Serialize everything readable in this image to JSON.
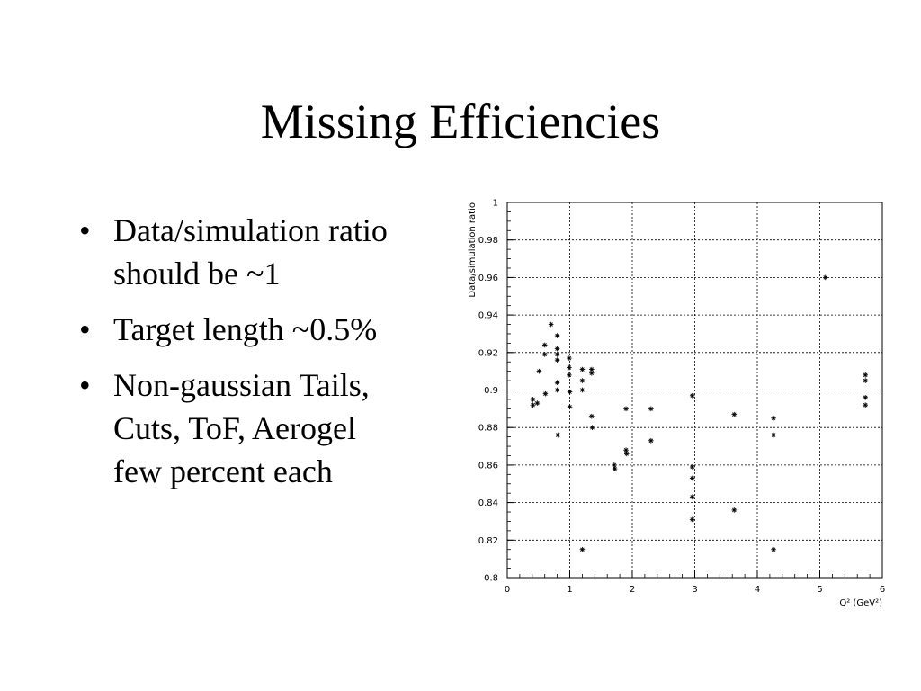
{
  "slide": {
    "title": "Missing Efficiencies",
    "bullets": [
      {
        "lines": [
          "Data/simulation ratio",
          "should be ~1"
        ]
      },
      {
        "lines": [
          "Target length ~0.5%"
        ]
      },
      {
        "lines": [
          "Non-gaussian Tails,",
          "Cuts, ToF, Aerogel",
          "few percent each"
        ]
      }
    ]
  },
  "chart_data": {
    "type": "scatter",
    "xlabel": "Q² (GeV²)",
    "ylabel": "Data/simulation ratio",
    "xlim": [
      0,
      6
    ],
    "ylim": [
      0.8,
      1.0
    ],
    "grid": true,
    "marker": "*",
    "xticks": [
      0,
      1,
      2,
      3,
      4,
      5,
      6
    ],
    "xtick_labels": [
      "0",
      "1",
      "2",
      "3",
      "4",
      "5",
      "6"
    ],
    "yticks": [
      0.8,
      0.82,
      0.84,
      0.86,
      0.88,
      0.9,
      0.92,
      0.94,
      0.96,
      0.98,
      1.0
    ],
    "ytick_labels": [
      "0.8",
      "0.82",
      "0.84",
      "0.86",
      "0.88",
      "0.9",
      "0.92",
      "0.94",
      "0.96",
      "0.98",
      "1"
    ],
    "points": [
      {
        "x": 0.41,
        "y": 0.892
      },
      {
        "x": 0.41,
        "y": 0.895
      },
      {
        "x": 0.48,
        "y": 0.893
      },
      {
        "x": 0.51,
        "y": 0.91
      },
      {
        "x": 0.6,
        "y": 0.924
      },
      {
        "x": 0.6,
        "y": 0.919
      },
      {
        "x": 0.61,
        "y": 0.898
      },
      {
        "x": 0.7,
        "y": 0.935
      },
      {
        "x": 0.8,
        "y": 0.929
      },
      {
        "x": 0.8,
        "y": 0.922
      },
      {
        "x": 0.8,
        "y": 0.919
      },
      {
        "x": 0.8,
        "y": 0.916
      },
      {
        "x": 0.8,
        "y": 0.904
      },
      {
        "x": 0.8,
        "y": 0.9
      },
      {
        "x": 0.81,
        "y": 0.876
      },
      {
        "x": 0.99,
        "y": 0.917
      },
      {
        "x": 0.99,
        "y": 0.912
      },
      {
        "x": 0.99,
        "y": 0.908
      },
      {
        "x": 1.0,
        "y": 0.899
      },
      {
        "x": 1.0,
        "y": 0.891
      },
      {
        "x": 1.2,
        "y": 0.911
      },
      {
        "x": 1.2,
        "y": 0.905
      },
      {
        "x": 1.2,
        "y": 0.9
      },
      {
        "x": 1.2,
        "y": 0.815
      },
      {
        "x": 1.35,
        "y": 0.911
      },
      {
        "x": 1.35,
        "y": 0.909
      },
      {
        "x": 1.35,
        "y": 0.886
      },
      {
        "x": 1.36,
        "y": 0.88
      },
      {
        "x": 1.71,
        "y": 0.86
      },
      {
        "x": 1.72,
        "y": 0.858
      },
      {
        "x": 1.9,
        "y": 0.89
      },
      {
        "x": 1.9,
        "y": 0.868
      },
      {
        "x": 1.91,
        "y": 0.866
      },
      {
        "x": 2.3,
        "y": 0.89
      },
      {
        "x": 2.3,
        "y": 0.873
      },
      {
        "x": 2.96,
        "y": 0.897
      },
      {
        "x": 2.96,
        "y": 0.859
      },
      {
        "x": 2.96,
        "y": 0.853
      },
      {
        "x": 2.96,
        "y": 0.843
      },
      {
        "x": 2.96,
        "y": 0.831
      },
      {
        "x": 3.63,
        "y": 0.887
      },
      {
        "x": 3.63,
        "y": 0.836
      },
      {
        "x": 4.26,
        "y": 0.885
      },
      {
        "x": 4.26,
        "y": 0.876
      },
      {
        "x": 4.26,
        "y": 0.815
      },
      {
        "x": 5.09,
        "y": 0.96
      },
      {
        "x": 5.73,
        "y": 0.908
      },
      {
        "x": 5.73,
        "y": 0.905
      },
      {
        "x": 5.73,
        "y": 0.896
      },
      {
        "x": 5.73,
        "y": 0.892
      }
    ]
  }
}
